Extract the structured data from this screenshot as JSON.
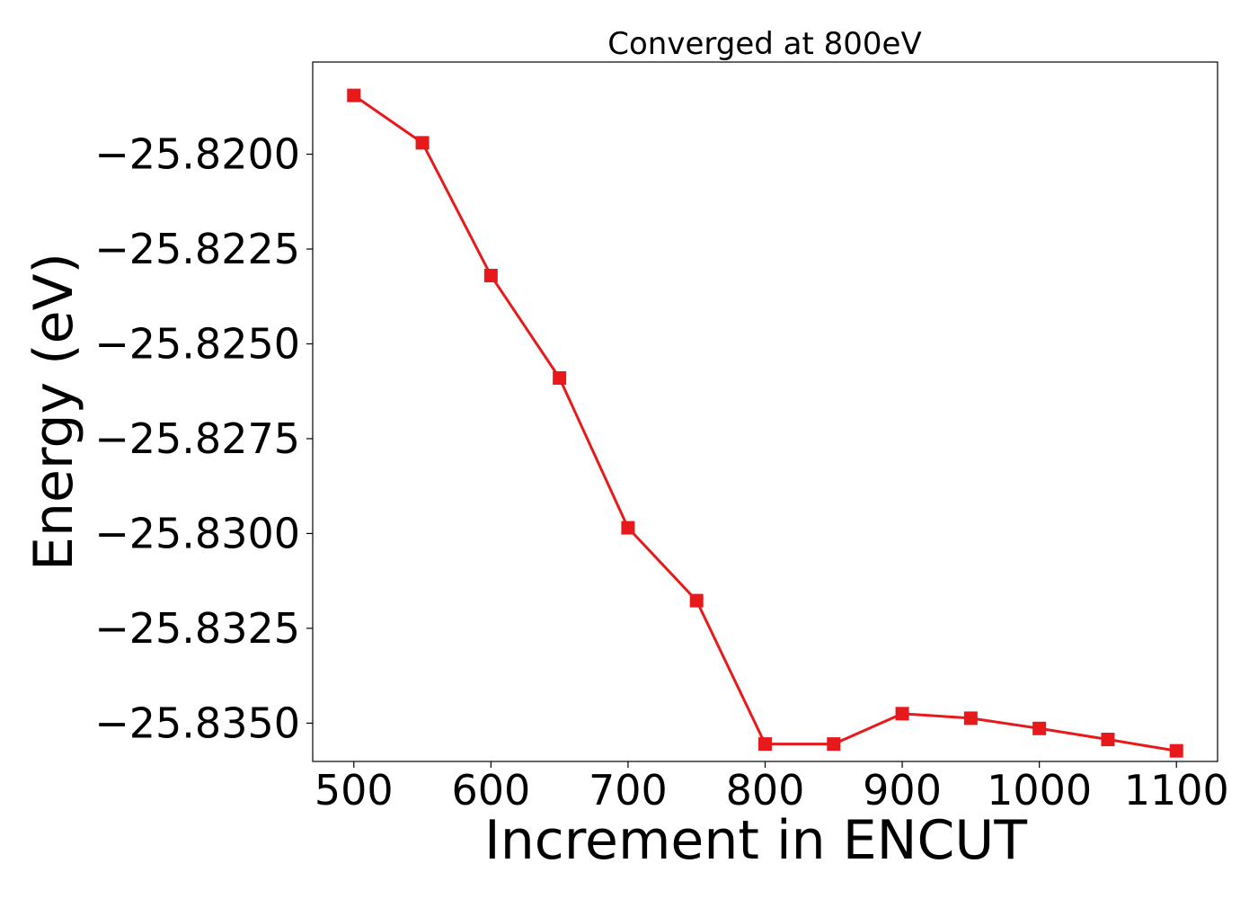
{
  "chart_data": {
    "type": "line",
    "title": "Converged at 800eV",
    "xlabel": "Increment in ENCUT",
    "ylabel": "Energy (eV)",
    "x": [
      500,
      550,
      600,
      650,
      700,
      750,
      800,
      850,
      900,
      950,
      1000,
      1050,
      1100
    ],
    "series": [
      {
        "values": [
          -25.81845,
          -25.8197,
          -25.8232,
          -25.8259,
          -25.82985,
          -25.83177,
          -25.83555,
          -25.83555,
          -25.83475,
          -25.83487,
          -25.83514,
          -25.83543,
          -25.83573
        ],
        "color": "#e8191b",
        "marker": "square"
      }
    ],
    "xticks": [
      500,
      600,
      700,
      800,
      900,
      1000,
      1100
    ],
    "xtick_labels": [
      "500",
      "600",
      "700",
      "800",
      "900",
      "1000",
      "1100"
    ],
    "yticks": [
      -25.82,
      -25.8225,
      -25.825,
      -25.8275,
      -25.83,
      -25.8325,
      -25.835
    ],
    "ytick_labels": [
      "−25.8200",
      "−25.8225",
      "−25.8250",
      "−25.8275",
      "−25.8300",
      "−25.8325",
      "−25.8350"
    ],
    "xlim": [
      470,
      1130
    ],
    "ylim": [
      -25.83601,
      -25.81757
    ],
    "grid": false,
    "legend": false
  }
}
